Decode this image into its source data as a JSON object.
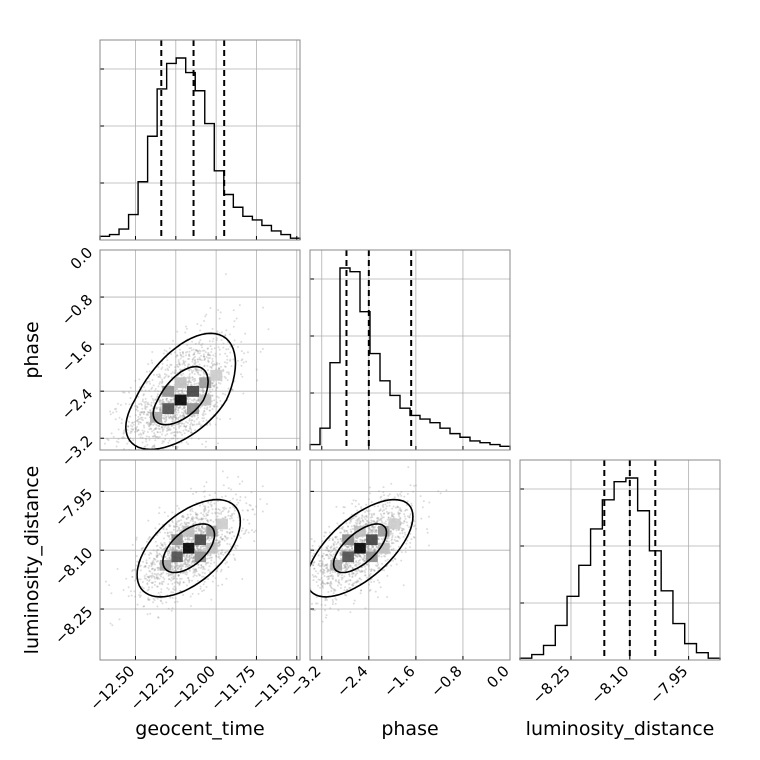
{
  "chart_data": {
    "type": "corner",
    "parameters": [
      {
        "name": "geocent_time",
        "range": [
          -12.72,
          -11.48
        ],
        "ticks": [
          -12.5,
          -12.25,
          -12.0,
          -11.75,
          -11.5
        ],
        "tick_labels": [
          "−12.50",
          "−12.25",
          "−12.00",
          "−11.75",
          "−11.50"
        ],
        "quantiles": [
          -12.34,
          -12.14,
          -11.95
        ],
        "hist": [
          0.02,
          0.03,
          0.06,
          0.14,
          0.32,
          0.57,
          0.83,
          0.97,
          1.0,
          0.92,
          0.82,
          0.64,
          0.38,
          0.25,
          0.18,
          0.13,
          0.11,
          0.08,
          0.05,
          0.03,
          0.01
        ]
      },
      {
        "name": "phase",
        "range": [
          -3.4,
          0.0
        ],
        "ticks": [
          -3.2,
          -2.4,
          -1.6,
          -0.8,
          0.0
        ],
        "tick_labels": [
          "−3.2",
          "−2.4",
          "−1.6",
          "−0.8",
          "0.0"
        ],
        "quantiles": [
          -2.78,
          -2.4,
          -1.68
        ],
        "hist": [
          0.03,
          0.12,
          0.48,
          1.0,
          0.98,
          0.76,
          0.53,
          0.38,
          0.3,
          0.23,
          0.19,
          0.17,
          0.15,
          0.12,
          0.09,
          0.07,
          0.05,
          0.04,
          0.03,
          0.02
        ]
      },
      {
        "name": "luminosity_distance",
        "range": [
          -8.38,
          -7.87
        ],
        "ticks": [
          -8.25,
          -8.1,
          -7.95
        ],
        "tick_labels": [
          "−8.25",
          "−8.10",
          "−7.95"
        ],
        "quantiles": [
          -8.165,
          -8.1,
          -8.035
        ],
        "hist": [
          0.01,
          0.03,
          0.08,
          0.19,
          0.35,
          0.52,
          0.72,
          0.88,
          0.98,
          1.0,
          0.82,
          0.6,
          0.38,
          0.2,
          0.09,
          0.04,
          0.01
        ]
      }
    ],
    "pairs": [
      {
        "x": 0,
        "y": 1,
        "center": [
          -12.22,
          -2.55
        ],
        "sd": [
          0.17,
          0.42
        ],
        "rho": 0.55,
        "skew_y": 0.35
      },
      {
        "x": 0,
        "y": 2,
        "center": [
          -12.17,
          -8.095
        ],
        "sd": [
          0.16,
          0.062
        ],
        "rho": 0.55,
        "skew_y": 0.0
      },
      {
        "x": 1,
        "y": 2,
        "center": [
          -2.55,
          -8.095
        ],
        "sd": [
          0.45,
          0.062
        ],
        "rho": 0.65,
        "skew_y": 0.0
      }
    ],
    "contour_levels": [
      1.0,
      2.0
    ],
    "gridlines": true
  }
}
